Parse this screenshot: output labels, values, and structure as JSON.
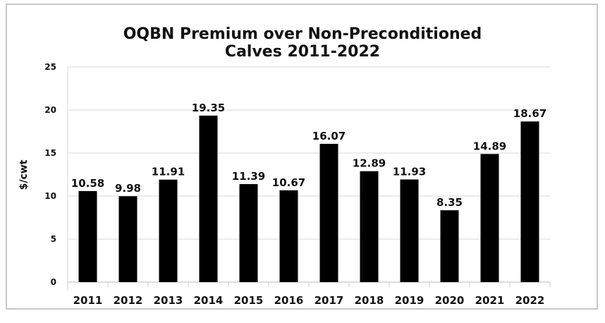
{
  "chart_data": {
    "type": "bar",
    "title": "OQBN Premium over Non-Preconditioned Calves 2011-2022",
    "title_lines": [
      "OQBN Premium over Non-Preconditioned",
      "Calves 2011-2022"
    ],
    "xlabel": "",
    "ylabel": "$/cwt",
    "categories": [
      "2011",
      "2012",
      "2013",
      "2014",
      "2015",
      "2016",
      "2017",
      "2018",
      "2019",
      "2020",
      "2021",
      "2022"
    ],
    "values": [
      10.58,
      9.98,
      11.91,
      19.35,
      11.39,
      10.67,
      16.07,
      12.89,
      11.93,
      8.35,
      14.89,
      18.67
    ],
    "data_labels": [
      "10.58",
      "9.98",
      "11.91",
      "19.35",
      "11.39",
      "10.67",
      "16.07",
      "12.89",
      "11.93",
      "8.35",
      "14.89",
      "18.67"
    ],
    "ylim": [
      0,
      25
    ],
    "yticks": [
      0,
      5,
      10,
      15,
      20,
      25
    ],
    "grid": true,
    "bar_color": "#000000"
  }
}
